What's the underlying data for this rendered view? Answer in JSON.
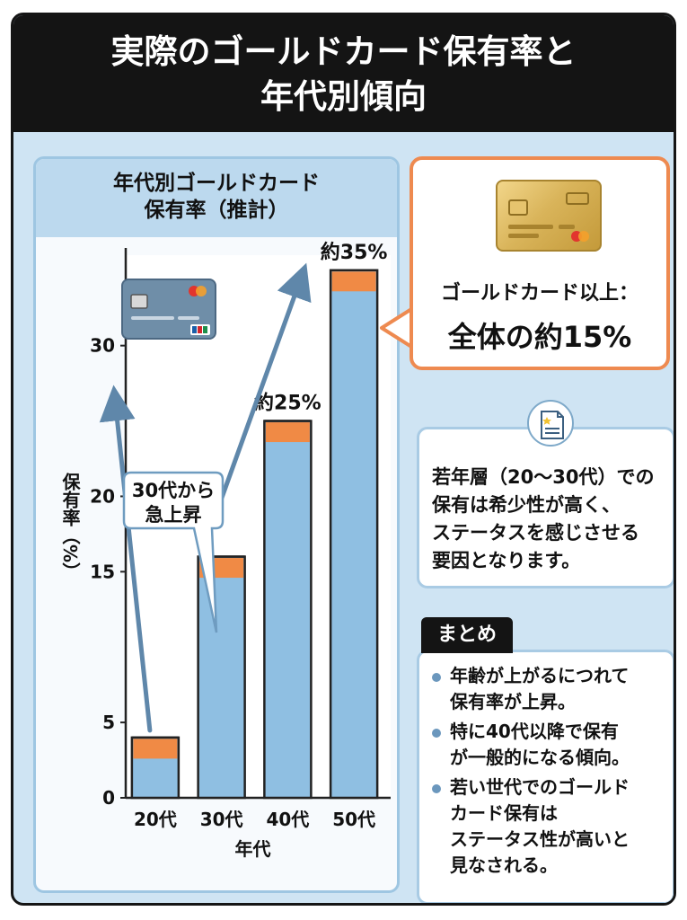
{
  "title": {
    "line1": "実際のゴールドカード保有率と",
    "line2": "年代別傾向"
  },
  "chart_panel": {
    "heading_line1": "年代別ゴールドカード",
    "heading_line2": "保有率（推計）",
    "callout_line1": "30代から",
    "callout_line2": "急上昇"
  },
  "chart_data": {
    "type": "bar",
    "categories": [
      "20代",
      "30代",
      "40代",
      "50代"
    ],
    "values": [
      4,
      16,
      25,
      35
    ],
    "series": [
      {
        "name": "",
        "values": [
          4,
          16,
          25,
          35
        ]
      }
    ],
    "data_labels": [
      "",
      "",
      "約25%",
      "約35%"
    ],
    "title": "年代別ゴールドカード保有率（推計）",
    "xlabel": "年代",
    "ylabel": "保有率（%）",
    "yticks": [
      0,
      5,
      15,
      20,
      30
    ],
    "ylim": [
      0,
      36
    ],
    "colors": {
      "bar": "#8fbfe2",
      "top": "#f08a45",
      "outline": "#222222",
      "arrow": "#5f87aa"
    }
  },
  "gold_box": {
    "line1": "ゴールドカード以上：",
    "line2": "全体の約15%",
    "accent": "#ee8a50"
  },
  "info": {
    "line1": "若年層（20〜30代）での",
    "line2": "保有は希少性が高く、",
    "line3": "ステータスを感じさせる",
    "line4": "要因となります。"
  },
  "summary": {
    "tag": "まとめ",
    "items": [
      {
        "line1": "年齢が上がるにつれて",
        "line2": "保有率が上昇。"
      },
      {
        "line1": "特に40代以降で保有",
        "line2": "が一般的になる傾向。"
      },
      {
        "line1": "若い世代でのゴールド",
        "line2": "カード保有は",
        "line3": "ステータス性が高いと",
        "line4": "見なされる。"
      }
    ]
  },
  "icons": {
    "gold_card": "gold-credit-card-icon",
    "blue_card": "credit-card-icon",
    "document": "document-icon"
  }
}
